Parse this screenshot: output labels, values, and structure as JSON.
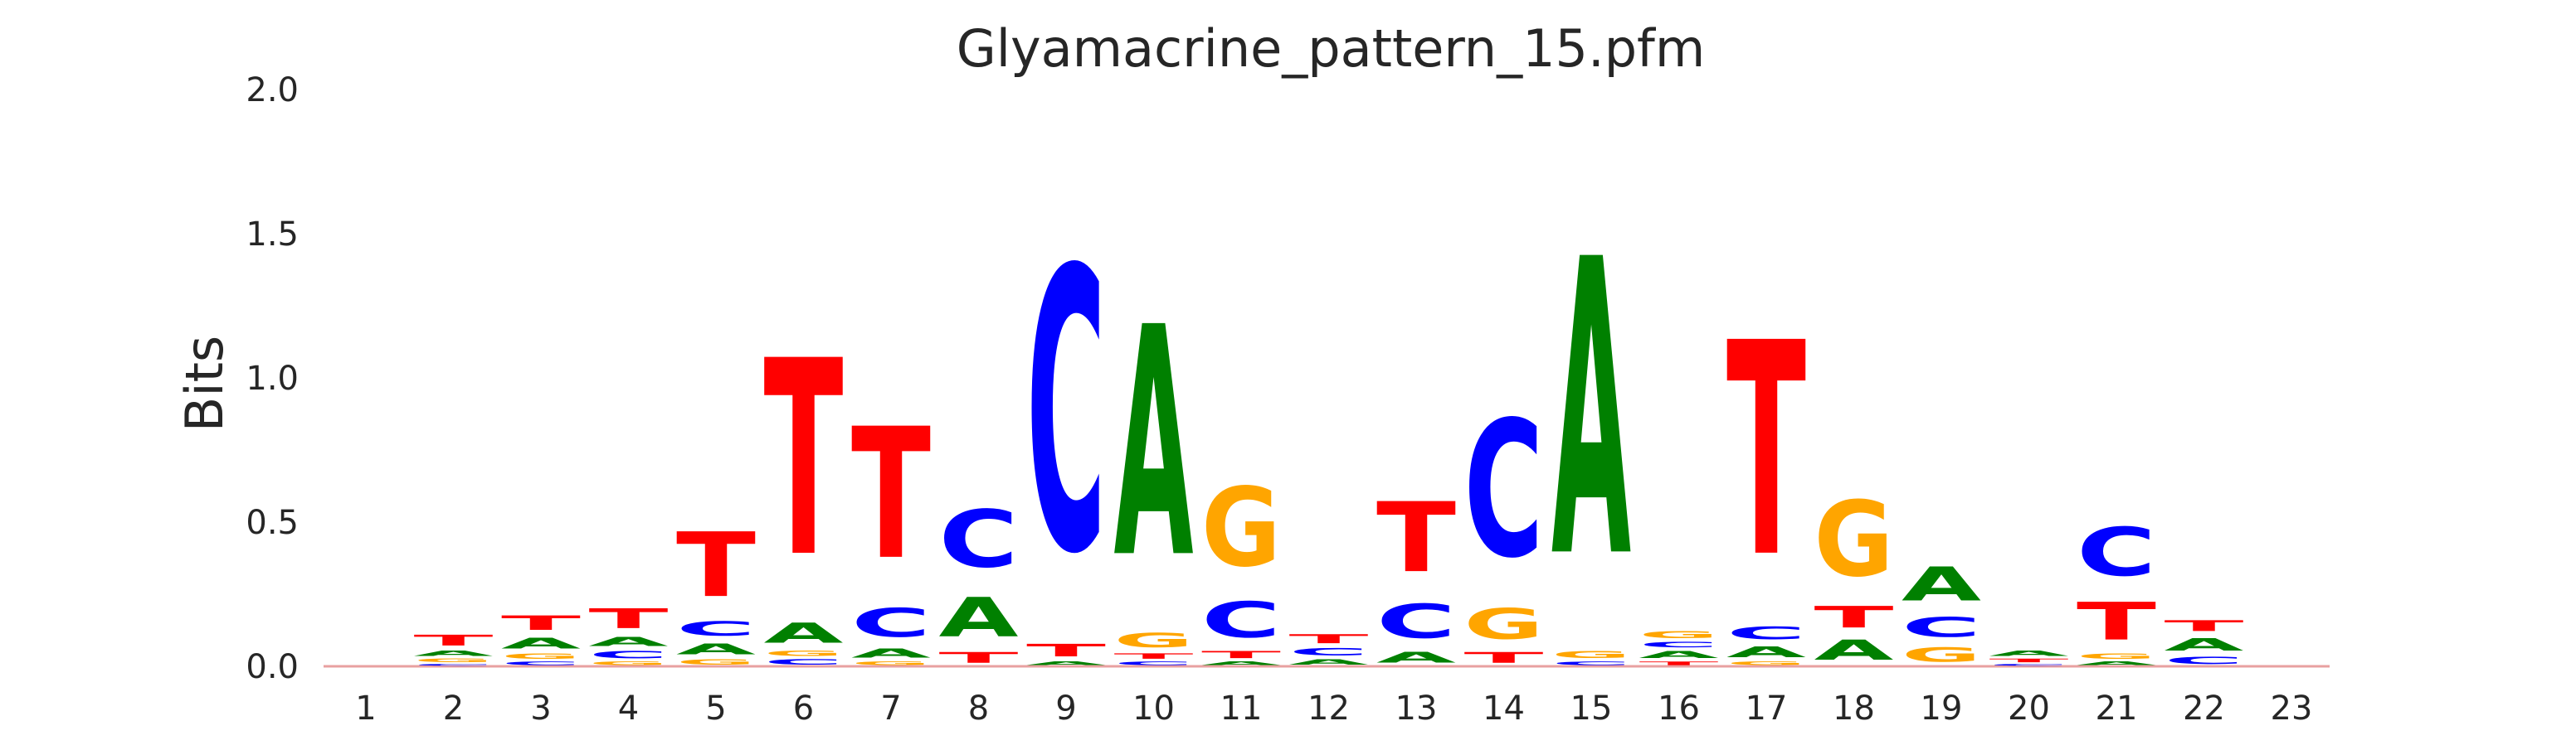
{
  "chart_data": {
    "type": "sequence-logo",
    "title": "Glyamacrine_pattern_15.pfm",
    "ylabel": "Bits",
    "xlabel": "",
    "ylim": [
      0,
      2.0
    ],
    "yticks": [
      "0.0",
      "0.5",
      "1.0",
      "1.5",
      "2.0"
    ],
    "grid": false,
    "colors": {
      "A": "#008000",
      "C": "#0000ff",
      "G": "#ffa500",
      "T": "#ff0000"
    },
    "positions": [
      {
        "pos": "1",
        "stack": []
      },
      {
        "pos": "2",
        "stack": [
          [
            "C",
            0.01
          ],
          [
            "G",
            0.02
          ],
          [
            "A",
            0.03
          ],
          [
            "T",
            0.06
          ]
        ]
      },
      {
        "pos": "3",
        "stack": [
          [
            "C",
            0.02
          ],
          [
            "G",
            0.03
          ],
          [
            "A",
            0.06
          ],
          [
            "T",
            0.08
          ]
        ]
      },
      {
        "pos": "4",
        "stack": [
          [
            "G",
            0.02
          ],
          [
            "C",
            0.04
          ],
          [
            "A",
            0.05
          ],
          [
            "T",
            0.11
          ]
        ]
      },
      {
        "pos": "5",
        "stack": [
          [
            "G",
            0.03
          ],
          [
            "A",
            0.06
          ],
          [
            "C",
            0.08
          ],
          [
            "T",
            0.36
          ]
        ]
      },
      {
        "pos": "6",
        "stack": [
          [
            "C",
            0.03
          ],
          [
            "G",
            0.03
          ],
          [
            "A",
            0.11
          ],
          [
            "T",
            1.09
          ]
        ]
      },
      {
        "pos": "7",
        "stack": [
          [
            "G",
            0.02
          ],
          [
            "A",
            0.05
          ],
          [
            "C",
            0.16
          ],
          [
            "T",
            0.73
          ]
        ]
      },
      {
        "pos": "8",
        "stack": [
          [
            "T",
            0.06
          ],
          [
            "A",
            0.22
          ],
          [
            "C",
            0.32
          ]
        ]
      },
      {
        "pos": "9",
        "stack": [
          [
            "A",
            0.02
          ],
          [
            "T",
            0.07
          ],
          [
            "C",
            1.57
          ]
        ]
      },
      {
        "pos": "10",
        "stack": [
          [
            "C",
            0.02
          ],
          [
            "T",
            0.03
          ],
          [
            "G",
            0.08
          ],
          [
            "A",
            1.28
          ]
        ]
      },
      {
        "pos": "11",
        "stack": [
          [
            "A",
            0.02
          ],
          [
            "T",
            0.04
          ],
          [
            "C",
            0.2
          ],
          [
            "G",
            0.44
          ]
        ]
      },
      {
        "pos": "12",
        "stack": [
          [
            "A",
            0.03
          ],
          [
            "C",
            0.04
          ],
          [
            "T",
            0.05
          ]
        ]
      },
      {
        "pos": "13",
        "stack": [
          [
            "A",
            0.06
          ],
          [
            "C",
            0.19
          ],
          [
            "T",
            0.39
          ]
        ]
      },
      {
        "pos": "14",
        "stack": [
          [
            "T",
            0.06
          ],
          [
            "G",
            0.17
          ],
          [
            "C",
            0.76
          ]
        ]
      },
      {
        "pos": "15",
        "stack": [
          [
            "C",
            0.02
          ],
          [
            "G",
            0.04
          ],
          [
            "A",
            1.65
          ]
        ]
      },
      {
        "pos": "16",
        "stack": [
          [
            "T",
            0.02
          ],
          [
            "A",
            0.04
          ],
          [
            "C",
            0.03
          ],
          [
            "G",
            0.04
          ]
        ]
      },
      {
        "pos": "17",
        "stack": [
          [
            "G",
            0.02
          ],
          [
            "A",
            0.06
          ],
          [
            "C",
            0.07
          ],
          [
            "T",
            1.19
          ]
        ]
      },
      {
        "pos": "18",
        "stack": [
          [
            "A",
            0.11
          ],
          [
            "T",
            0.12
          ],
          [
            "G",
            0.42
          ]
        ]
      },
      {
        "pos": "19",
        "stack": [
          [
            "G",
            0.08
          ],
          [
            "C",
            0.11
          ],
          [
            "A",
            0.19
          ]
        ]
      },
      {
        "pos": "20",
        "stack": [
          [
            "C",
            0.01
          ],
          [
            "T",
            0.02
          ],
          [
            "A",
            0.03
          ]
        ]
      },
      {
        "pos": "21",
        "stack": [
          [
            "A",
            0.02
          ],
          [
            "G",
            0.03
          ],
          [
            "T",
            0.21
          ],
          [
            "C",
            0.27
          ]
        ]
      },
      {
        "pos": "22",
        "stack": [
          [
            "C",
            0.04
          ],
          [
            "A",
            0.07
          ],
          [
            "T",
            0.06
          ]
        ]
      },
      {
        "pos": "23",
        "stack": []
      }
    ]
  }
}
